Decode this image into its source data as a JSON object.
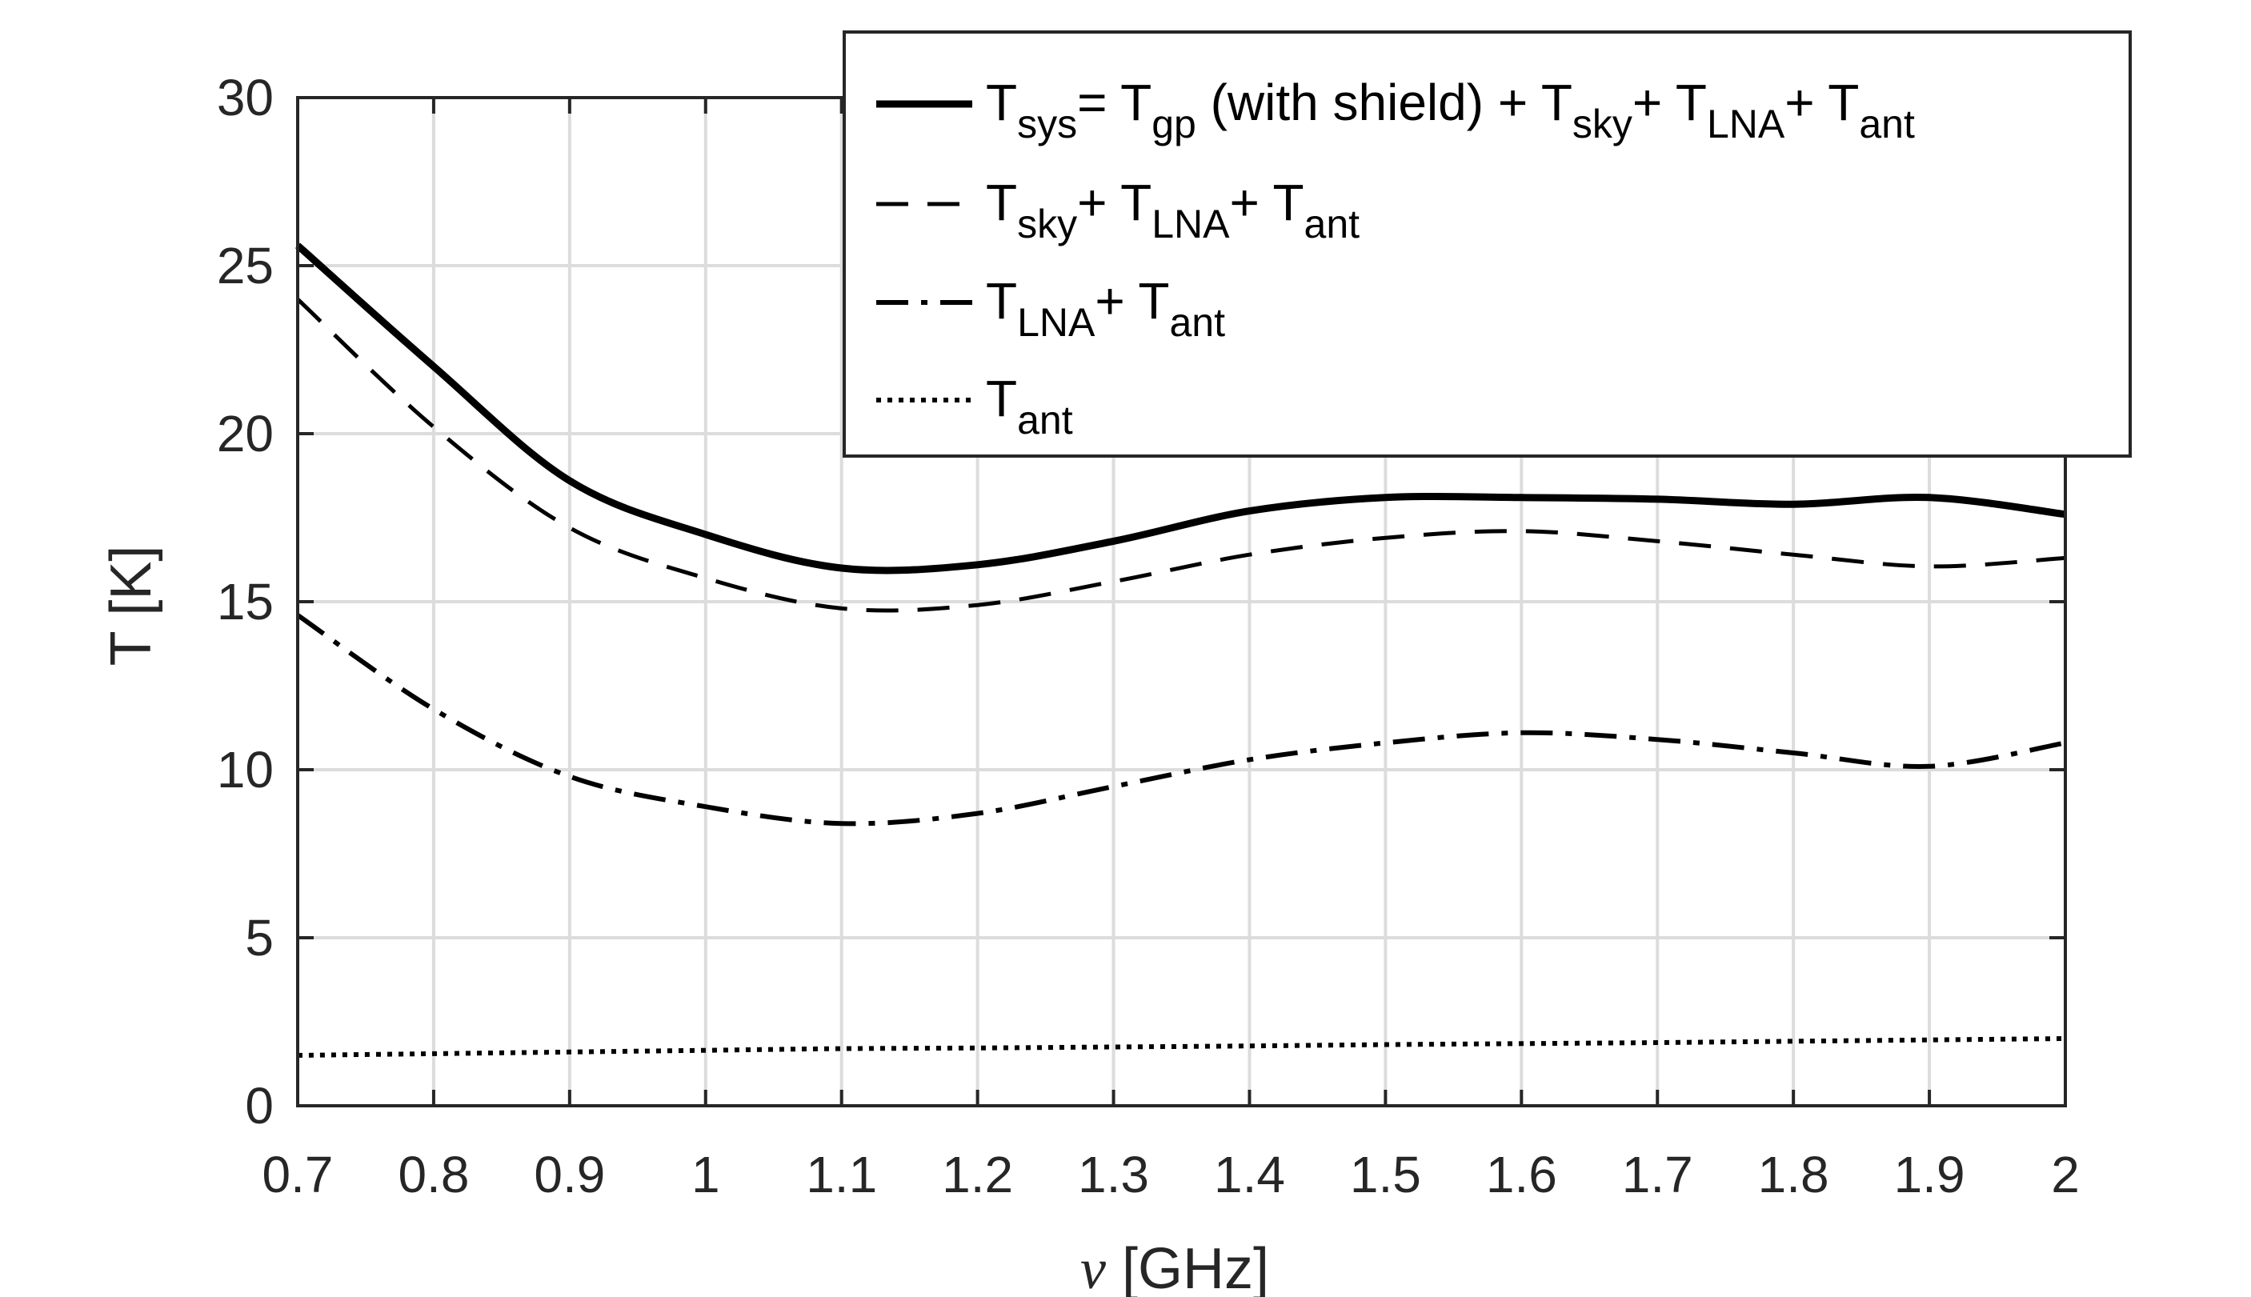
{
  "chart_data": {
    "type": "line",
    "title": "",
    "xlabel": "ν [GHz]",
    "xlabel_symbol": "ν",
    "xlabel_unit": " [GHz]",
    "ylabel": "T [K]",
    "xlim": [
      0.7,
      2.0
    ],
    "ylim": [
      0,
      30
    ],
    "xticks": [
      "0.7",
      "0.8",
      "0.9",
      "1",
      "1.1",
      "1.2",
      "1.3",
      "1.4",
      "1.5",
      "1.6",
      "1.7",
      "1.8",
      "1.9",
      "2"
    ],
    "yticks": [
      "0",
      "5",
      "10",
      "15",
      "20",
      "25",
      "30"
    ],
    "grid": true,
    "legend_position": "top-right",
    "x": [
      0.7,
      0.8,
      0.9,
      1.0,
      1.1,
      1.2,
      1.3,
      1.4,
      1.5,
      1.6,
      1.7,
      1.8,
      1.9,
      2.0
    ],
    "series": [
      {
        "name": "T_sys = T_gp (with shield) + T_sky + T_LNA + T_ant",
        "style": "solid",
        "values": [
          25.6,
          22.0,
          18.6,
          17.0,
          16.0,
          16.1,
          16.8,
          17.7,
          18.1,
          18.1,
          18.05,
          17.9,
          18.1,
          17.6
        ]
      },
      {
        "name": "T_sky + T_LNA + T_ant",
        "style": "dashed",
        "values": [
          24.0,
          20.2,
          17.2,
          15.7,
          14.8,
          14.9,
          15.6,
          16.4,
          16.9,
          17.1,
          16.8,
          16.4,
          16.05,
          16.3
        ]
      },
      {
        "name": "T_LNA + T_ant",
        "style": "dashdot",
        "values": [
          14.6,
          11.8,
          9.8,
          8.9,
          8.4,
          8.7,
          9.5,
          10.3,
          10.8,
          11.1,
          10.9,
          10.5,
          10.1,
          10.8
        ]
      },
      {
        "name": "T_ant",
        "style": "dotted",
        "values": [
          1.5,
          1.55,
          1.6,
          1.65,
          1.7,
          1.72,
          1.75,
          1.78,
          1.82,
          1.85,
          1.88,
          1.92,
          1.96,
          2.0
        ]
      }
    ],
    "legend": [
      {
        "style": "solid",
        "parts": [
          [
            "T",
            ""
          ],
          [
            "sys",
            "sub"
          ],
          [
            "= T",
            ""
          ],
          [
            "gp",
            "sub"
          ],
          [
            " (with shield) + T",
            ""
          ],
          [
            "sky",
            "sub"
          ],
          [
            "+ T",
            ""
          ],
          [
            "LNA",
            "sub"
          ],
          [
            "+ T",
            ""
          ],
          [
            "ant",
            "sub"
          ]
        ]
      },
      {
        "style": "dashed",
        "parts": [
          [
            "T",
            ""
          ],
          [
            "sky",
            "sub"
          ],
          [
            "+ T",
            ""
          ],
          [
            "LNA",
            "sub"
          ],
          [
            "+ T",
            ""
          ],
          [
            "ant",
            "sub"
          ]
        ]
      },
      {
        "style": "dashdot",
        "parts": [
          [
            "T",
            ""
          ],
          [
            "LNA",
            "sub"
          ],
          [
            "+ T",
            ""
          ],
          [
            "ant",
            "sub"
          ]
        ]
      },
      {
        "style": "dotted",
        "parts": [
          [
            "T",
            ""
          ],
          [
            "ant",
            "sub"
          ]
        ]
      }
    ],
    "colors": {
      "line": "#000000",
      "axis": "#262626",
      "grid": "#dcdcdc"
    }
  }
}
